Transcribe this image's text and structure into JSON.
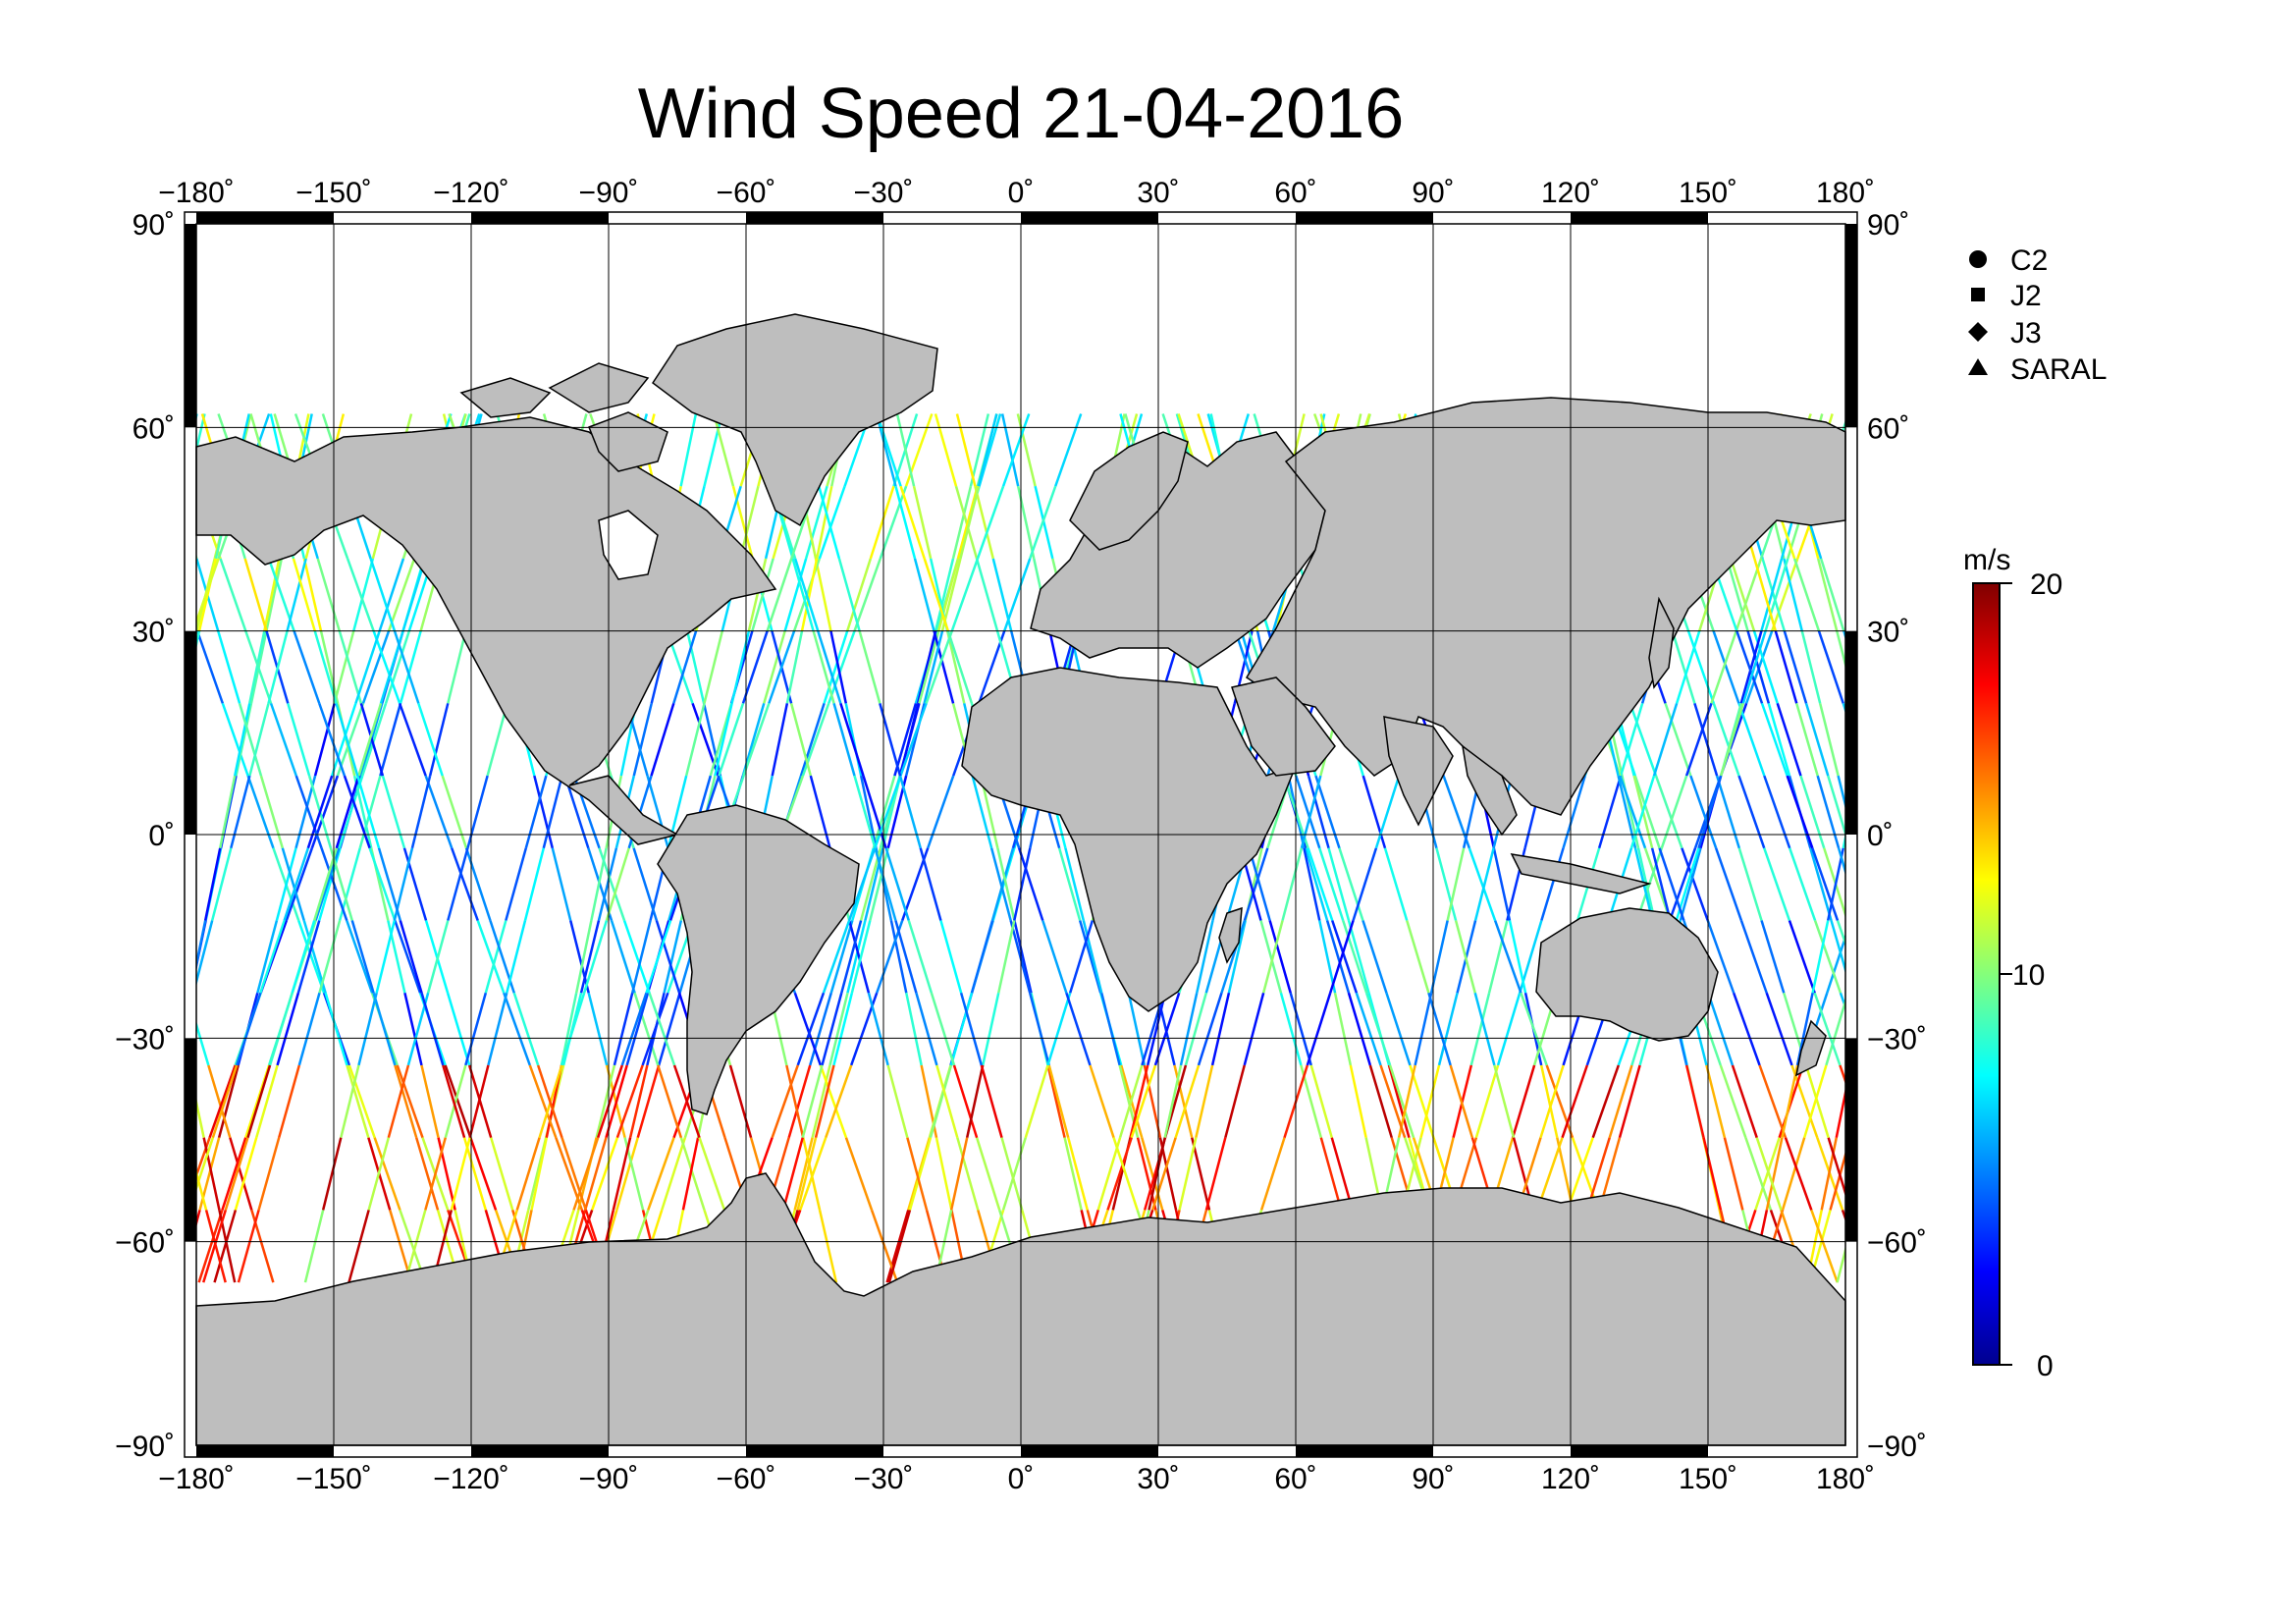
{
  "title": "Wind Speed 21-04-2016",
  "map": {
    "projection": "equirectangular",
    "lon_range": [
      -180,
      180
    ],
    "lat_range": [
      -90,
      90
    ],
    "lon_ticks": [
      "−180˚",
      "−150˚",
      "−120˚",
      "−90˚",
      "−60˚",
      "−30˚",
      "0˚",
      "30˚",
      "60˚",
      "90˚",
      "120˚",
      "150˚",
      "180˚"
    ],
    "lat_ticks_left": [
      "90˚",
      "60˚",
      "30˚",
      "0˚",
      "−30˚",
      "−60˚",
      "−90˚"
    ],
    "lat_ticks_right": [
      "90˚",
      "60˚",
      "30˚",
      "0˚",
      "−30˚",
      "−60˚",
      "−90˚"
    ],
    "grid": true,
    "land_color": "#bebebe",
    "ocean_color": "#ffffff",
    "frame_style": "alternating black/white frame bars"
  },
  "legend": {
    "placement": "top-right",
    "items": [
      {
        "symbol": "circle-icon",
        "label": "C2"
      },
      {
        "symbol": "square-icon",
        "label": "J2"
      },
      {
        "symbol": "diamond-icon",
        "label": "J3"
      },
      {
        "symbol": "triangle-icon",
        "label": "SARAL"
      }
    ]
  },
  "colorbar": {
    "unit": "m/s",
    "min": 0,
    "max": 20,
    "tick_labels": [
      "20",
      "10",
      "0"
    ],
    "colormap": "jet",
    "colors": [
      "#00008f",
      "#0000ff",
      "#00ffff",
      "#ffff00",
      "#ff0000",
      "#800000"
    ]
  },
  "chart_data": {
    "type": "scatter",
    "title": "Wind Speed 21-04-2016",
    "x_range": [
      -180,
      180
    ],
    "y_range": [
      -90,
      90
    ],
    "color_range": [
      0,
      20
    ],
    "color_unit": "m/s",
    "series": [
      {
        "name": "C2"
      },
      {
        "name": "J2"
      },
      {
        "name": "J3"
      },
      {
        "name": "SARAL"
      }
    ]
  }
}
